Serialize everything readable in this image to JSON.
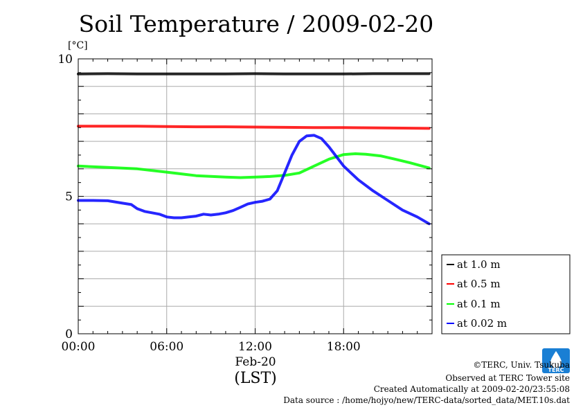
{
  "chart_data": {
    "type": "line",
    "title": "Soil Temperature / 2009-02-20",
    "ylabel": "[°C]",
    "xlabel_date": "Feb-20",
    "xlabel_tz": "(LST)",
    "xlim": [
      0,
      24
    ],
    "ylim": [
      0,
      10
    ],
    "x_ticks": [
      0,
      6,
      12,
      18
    ],
    "x_tick_labels": [
      "00:00",
      "06:00",
      "12:00",
      "18:00"
    ],
    "y_ticks": [
      0,
      5,
      10
    ],
    "y_tick_labels": [
      "0",
      "5",
      "10"
    ],
    "grid": true,
    "legend_position": "bottom-right-outside",
    "series": [
      {
        "name": "at 1.0 m",
        "color": "#000000",
        "x": [
          0,
          2,
          4,
          6,
          8,
          10,
          12,
          14,
          16,
          18,
          20,
          22,
          23.8
        ],
        "values": [
          9.45,
          9.46,
          9.45,
          9.45,
          9.45,
          9.45,
          9.46,
          9.45,
          9.45,
          9.45,
          9.46,
          9.46,
          9.46
        ]
      },
      {
        "name": "at 0.5 m",
        "color": "#ff0000",
        "x": [
          0,
          2,
          4,
          6,
          8,
          10,
          12,
          14,
          16,
          18,
          20,
          22,
          23.8
        ],
        "values": [
          7.55,
          7.55,
          7.55,
          7.54,
          7.53,
          7.53,
          7.52,
          7.51,
          7.5,
          7.5,
          7.49,
          7.48,
          7.47
        ]
      },
      {
        "name": "at 0.1 m",
        "color": "#00ff00",
        "x": [
          0,
          2,
          4,
          6,
          8,
          10,
          11,
          12,
          13,
          14,
          15,
          16,
          17,
          18,
          18.8,
          19.5,
          20.5,
          21.5,
          22.5,
          23.8
        ],
        "values": [
          6.1,
          6.05,
          6.0,
          5.88,
          5.75,
          5.7,
          5.68,
          5.7,
          5.72,
          5.76,
          5.85,
          6.1,
          6.35,
          6.52,
          6.55,
          6.53,
          6.47,
          6.35,
          6.22,
          6.03
        ]
      },
      {
        "name": "at 0.02 m",
        "color": "#0000ff",
        "x": [
          0,
          1,
          2,
          3,
          3.6,
          4,
          4.5,
          5,
          5.5,
          6,
          6.5,
          7,
          7.5,
          8,
          8.5,
          9,
          9.5,
          10,
          10.5,
          11,
          11.5,
          12,
          12.5,
          13,
          13.5,
          14,
          14.5,
          15,
          15.5,
          16,
          16.5,
          17,
          17.5,
          18,
          18.5,
          19,
          20,
          21,
          22,
          23,
          23.8
        ],
        "values": [
          4.85,
          4.85,
          4.84,
          4.75,
          4.7,
          4.55,
          4.45,
          4.4,
          4.35,
          4.25,
          4.22,
          4.22,
          4.25,
          4.28,
          4.35,
          4.32,
          4.35,
          4.4,
          4.48,
          4.6,
          4.72,
          4.78,
          4.82,
          4.9,
          5.2,
          5.85,
          6.5,
          7.0,
          7.2,
          7.22,
          7.1,
          6.8,
          6.45,
          6.1,
          5.85,
          5.6,
          5.2,
          4.85,
          4.5,
          4.25,
          4.0
        ]
      }
    ]
  },
  "credits": {
    "copyright": "©TERC, Univ. Tsukuba",
    "observed": "Observed at TERC Tower site",
    "created": "Created Automatically at 2009-02-20/23:55:08",
    "source": "Data source : /home/hojyo/new/TERC-data/sorted_data/MET.10s.dat"
  },
  "logo": {
    "text": "TERC",
    "color": "#1a7fd4"
  }
}
